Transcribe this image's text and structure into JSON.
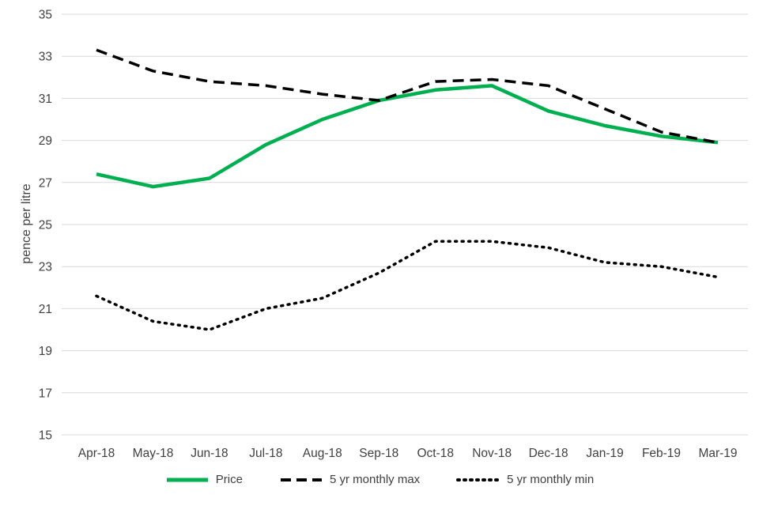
{
  "chart_data": {
    "type": "line",
    "categories": [
      "Apr-18",
      "May-18",
      "Jun-18",
      "Jul-18",
      "Aug-18",
      "Sep-18",
      "Oct-18",
      "Nov-18",
      "Dec-18",
      "Jan-19",
      "Feb-19",
      "Mar-19"
    ],
    "series": [
      {
        "name": "Price",
        "color": "#00B050",
        "style": "solid",
        "values": [
          27.4,
          26.8,
          27.2,
          28.8,
          30.0,
          30.9,
          31.4,
          31.6,
          30.4,
          29.7,
          29.2,
          28.9
        ]
      },
      {
        "name": "5 yr monthly max",
        "color": "#000000",
        "style": "dashed",
        "values": [
          33.3,
          32.3,
          31.8,
          31.6,
          31.2,
          30.9,
          31.8,
          31.9,
          31.6,
          30.5,
          29.4,
          28.9
        ]
      },
      {
        "name": "5 yr monthly min",
        "color": "#000000",
        "style": "dotted",
        "values": [
          21.6,
          20.4,
          20.0,
          21.0,
          21.5,
          22.7,
          24.2,
          24.2,
          23.9,
          23.2,
          23.0,
          22.5
        ]
      }
    ],
    "title": "",
    "xlabel": "",
    "ylabel": "pence per litre",
    "ylim": [
      15,
      35
    ],
    "ytick_step": 2,
    "grid": true,
    "gridline_color": "#d9d9d9",
    "legend_position": "bottom"
  }
}
